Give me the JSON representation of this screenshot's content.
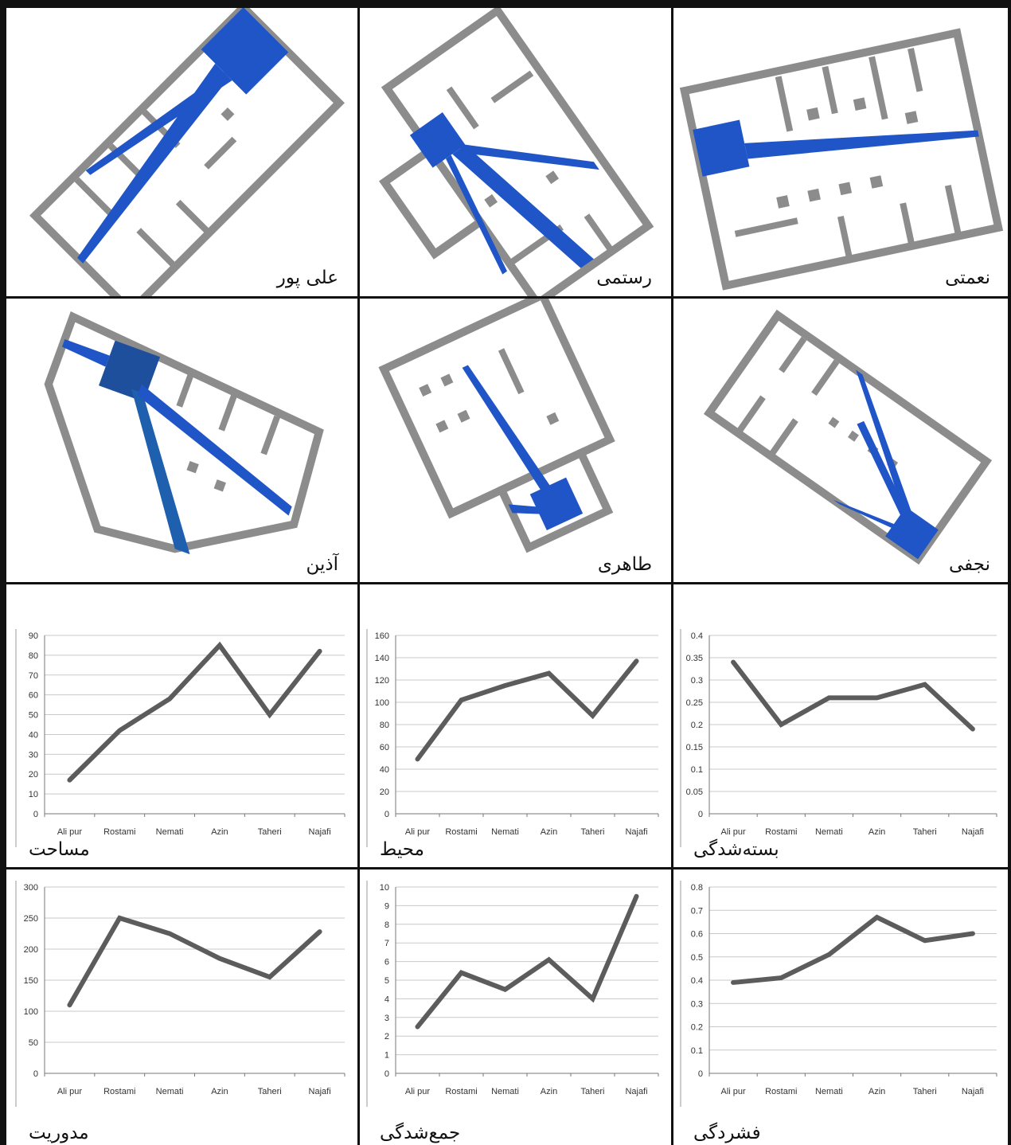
{
  "colors": {
    "wall": "#8c8c8c",
    "floor": "#ffffff",
    "isovist": "#1f55c6",
    "line": "#5c5c5c",
    "grid": "#c9c9c9",
    "border": "#111111"
  },
  "plans": [
    {
      "label": "نعمتی"
    },
    {
      "label": "رستمی"
    },
    {
      "label": "علی پور"
    },
    {
      "label": "نجفی"
    },
    {
      "label": "طاهری"
    },
    {
      "label": "آذین"
    }
  ],
  "charts": [
    {
      "label": "بسته‌شدگی"
    },
    {
      "label": "محیط"
    },
    {
      "label": "مساحت"
    },
    {
      "label": "فشردگی"
    },
    {
      "label": "جمع‌شدگی"
    },
    {
      "label": "مدوریت"
    }
  ],
  "chart_data": [
    {
      "type": "line",
      "title": "",
      "categories": [
        "Ali pur",
        "Rostami",
        "Nemati",
        "Azin",
        "Taheri",
        "Najafi"
      ],
      "values": [
        0.34,
        0.2,
        0.26,
        0.26,
        0.29,
        0.19
      ],
      "ylim": [
        0,
        0.4
      ],
      "yticks": [
        "0",
        "0.05",
        "0.1",
        "0.15",
        "0.2",
        "0.25",
        "0.3",
        "0.35",
        "0.4"
      ]
    },
    {
      "type": "line",
      "title": "",
      "categories": [
        "Ali pur",
        "Rostami",
        "Nemati",
        "Azin",
        "Taheri",
        "Najafi"
      ],
      "values": [
        49,
        102,
        115,
        126,
        88,
        137
      ],
      "ylim": [
        0,
        160
      ],
      "yticks": [
        "0",
        "20",
        "40",
        "60",
        "80",
        "100",
        "120",
        "140",
        "160"
      ]
    },
    {
      "type": "line",
      "title": "",
      "categories": [
        "Ali pur",
        "Rostami",
        "Nemati",
        "Azin",
        "Taheri",
        "Najafi"
      ],
      "values": [
        17,
        42,
        58,
        85,
        50,
        82
      ],
      "ylim": [
        0,
        90
      ],
      "yticks": [
        "0",
        "10",
        "20",
        "30",
        "40",
        "50",
        "60",
        "70",
        "80",
        "90"
      ]
    },
    {
      "type": "line",
      "title": "",
      "categories": [
        "Ali pur",
        "Rostami",
        "Nemati",
        "Azin",
        "Taheri",
        "Najafi"
      ],
      "values": [
        0.39,
        0.41,
        0.51,
        0.67,
        0.57,
        0.6
      ],
      "ylim": [
        0,
        0.8
      ],
      "yticks": [
        "0",
        "0.1",
        "0.2",
        "0.3",
        "0.4",
        "0.5",
        "0.6",
        "0.7",
        "0.8"
      ]
    },
    {
      "type": "line",
      "title": "",
      "categories": [
        "Ali pur",
        "Rostami",
        "Nemati",
        "Azin",
        "Taheri",
        "Najafi"
      ],
      "values": [
        2.5,
        5.4,
        4.5,
        6.1,
        4.0,
        9.5
      ],
      "ylim": [
        0,
        10
      ],
      "yticks": [
        "0",
        "1",
        "2",
        "3",
        "4",
        "5",
        "6",
        "7",
        "8",
        "9",
        "10"
      ]
    },
    {
      "type": "line",
      "title": "",
      "categories": [
        "Ali pur",
        "Rostami",
        "Nemati",
        "Azin",
        "Taheri",
        "Najafi"
      ],
      "values": [
        110,
        250,
        225,
        185,
        155,
        228
      ],
      "ylim": [
        0,
        300
      ],
      "yticks": [
        "0",
        "50",
        "100",
        "150",
        "200",
        "250",
        "300"
      ]
    }
  ]
}
